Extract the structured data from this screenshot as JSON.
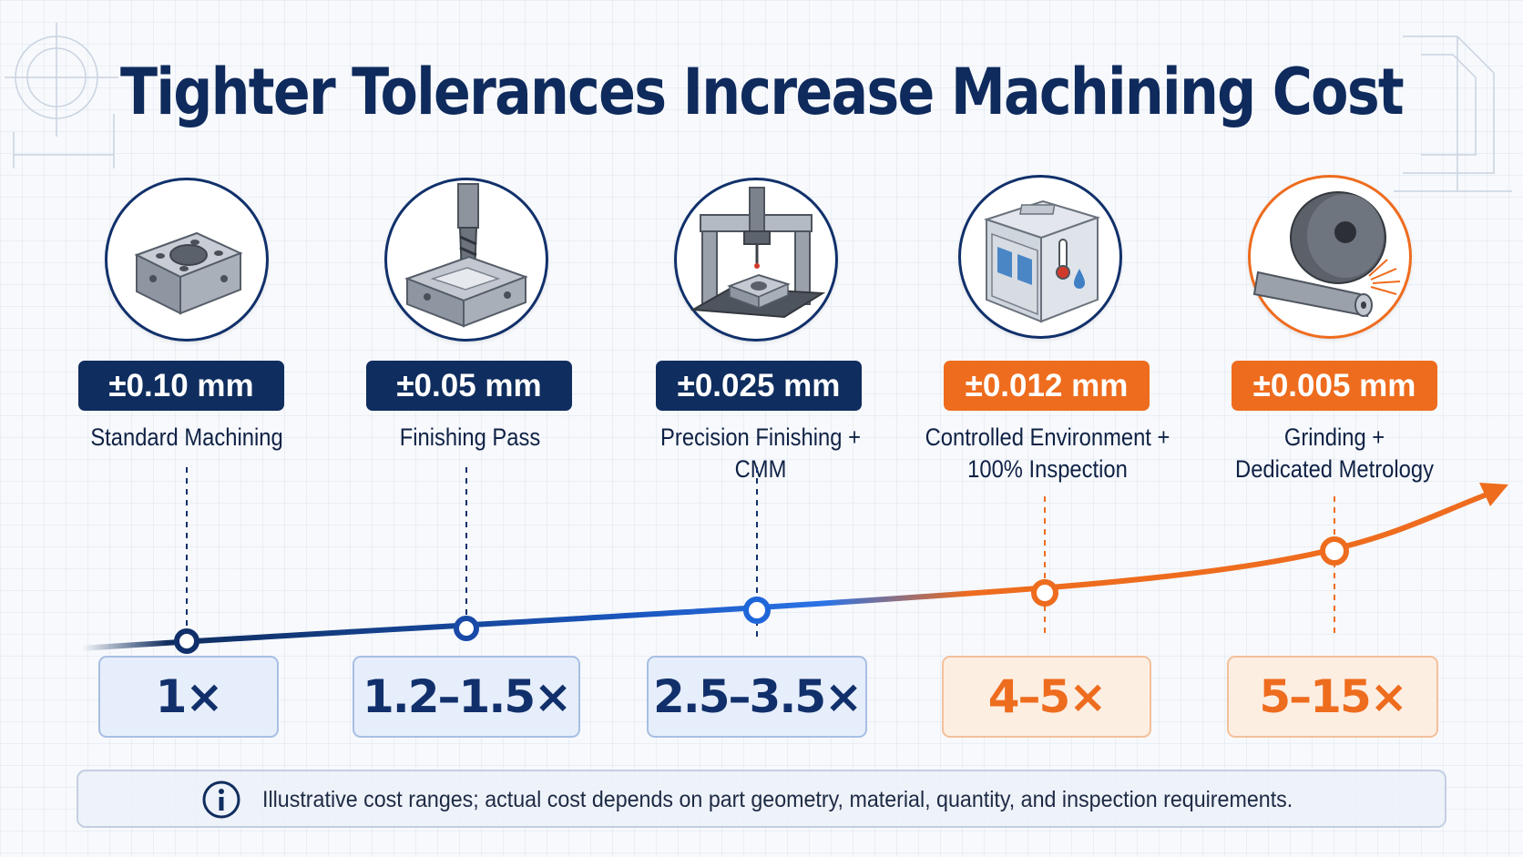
{
  "title": "Tighter Tolerances Increase Machining Cost",
  "tiers": [
    {
      "tolerance": "±0.10 mm",
      "process": [
        "Standard Machining"
      ],
      "cost_multiplier": "1×",
      "icon": "machined-block-icon",
      "accent": "navy"
    },
    {
      "tolerance": "±0.05 mm",
      "process": [
        "Finishing Pass"
      ],
      "cost_multiplier": "1.2–1.5×",
      "icon": "end-mill-finishing-icon",
      "accent": "navy"
    },
    {
      "tolerance": "±0.025 mm",
      "process": [
        "Precision Finishing + CMM"
      ],
      "cost_multiplier": "2.5–3.5×",
      "icon": "cmm-machine-icon",
      "accent": "navy"
    },
    {
      "tolerance": "±0.012 mm",
      "process": [
        "Controlled Environment +",
        "100% Inspection"
      ],
      "cost_multiplier": "4–5×",
      "icon": "climate-chamber-icon",
      "accent": "orange"
    },
    {
      "tolerance": "±0.005 mm",
      "process": [
        "Grinding +",
        "Dedicated Metrology"
      ],
      "cost_multiplier": "5–15×",
      "icon": "grinding-wheel-icon",
      "accent": "orange"
    }
  ],
  "note": {
    "icon": "info-icon",
    "text": "Illustrative cost ranges; actual cost depends on part geometry, material, quantity, and inspection requirements."
  },
  "colors": {
    "navy": "#0f2d5e",
    "blue": "#1f66d9",
    "orange": "#ee6c1e",
    "background": "#f7f9fc"
  }
}
